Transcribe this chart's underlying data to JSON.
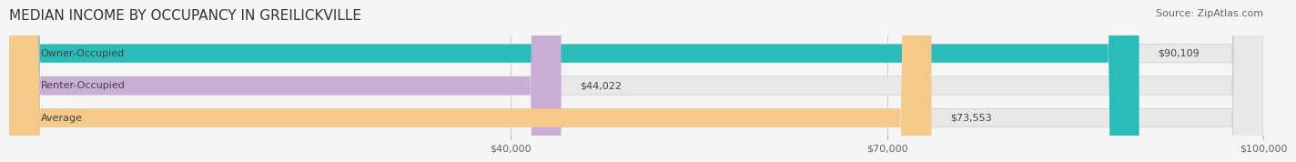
{
  "title": "MEDIAN INCOME BY OCCUPANCY IN GREILICKVILLE",
  "source": "Source: ZipAtlas.com",
  "categories": [
    "Owner-Occupied",
    "Renter-Occupied",
    "Average"
  ],
  "values": [
    90109,
    44022,
    73553
  ],
  "bar_colors": [
    "#2abcb8",
    "#c9aed6",
    "#f5c98a"
  ],
  "bar_edge_colors": [
    "#2abcb8",
    "#c9aed6",
    "#f5c98a"
  ],
  "value_labels": [
    "$90,109",
    "$44,022",
    "$73,553"
  ],
  "xlim": [
    0,
    100000
  ],
  "xticks": [
    40000,
    70000,
    100000
  ],
  "xtick_labels": [
    "$40,000",
    "$70,000",
    "$100,000"
  ],
  "background_color": "#f5f5f5",
  "bar_background_color": "#e8e8e8",
  "title_fontsize": 11,
  "source_fontsize": 8,
  "label_fontsize": 8,
  "tick_fontsize": 8
}
